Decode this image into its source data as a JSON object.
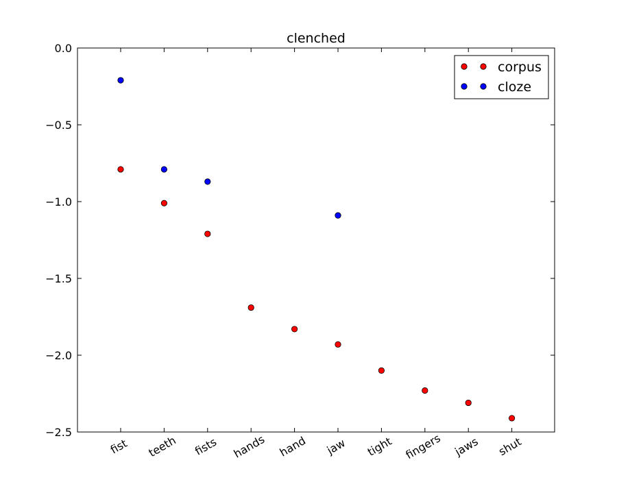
{
  "chart_data": {
    "type": "scatter",
    "title": "clenched",
    "xlabel": "",
    "ylabel": "",
    "categories": [
      "fist",
      "teeth",
      "fists",
      "hands",
      "hand",
      "jaw",
      "tight",
      "fingers",
      "jaws",
      "shut"
    ],
    "ylim": [
      -2.5,
      0.0
    ],
    "yticks": [
      "0.0",
      "−0.5",
      "−1.0",
      "−1.5",
      "−2.0",
      "−2.5"
    ],
    "ytick_values": [
      0.0,
      -0.5,
      -1.0,
      -1.5,
      -2.0,
      -2.5
    ],
    "legend_position": "top-right",
    "series": [
      {
        "name": "corpus",
        "color": "#ff0000",
        "values": [
          -0.79,
          -1.01,
          -1.21,
          -1.69,
          -1.83,
          -1.93,
          -2.1,
          -2.23,
          -2.31,
          -2.41
        ]
      },
      {
        "name": "cloze",
        "color": "#0000ff",
        "values": [
          -0.21,
          -0.79,
          -0.87,
          null,
          null,
          -1.09,
          null,
          null,
          null,
          null
        ]
      }
    ]
  }
}
